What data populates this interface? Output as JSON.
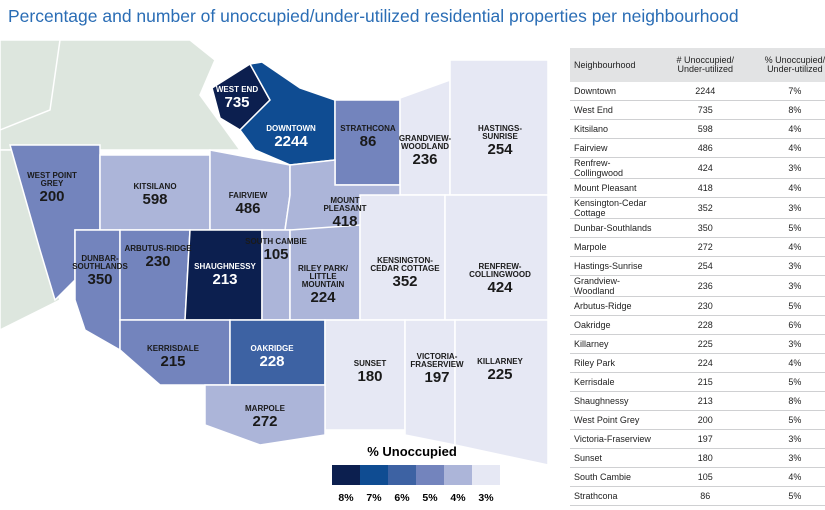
{
  "title": "Percentage and number of unoccupied/under-utilized residential properties per neighbourhood",
  "colors": {
    "8%": "#0c1f4f",
    "7%": "#0f4c92",
    "6%": "#3d62a3",
    "5%": "#7384bd",
    "4%": "#acb5d9",
    "3%": "#e6e8f4",
    "land": "#dde6de"
  },
  "map_labels": [
    {
      "name": "WEST END",
      "value": "735",
      "pct": "8%"
    },
    {
      "name": "DOWNTOWN",
      "value": "2244",
      "pct": "7%"
    },
    {
      "name": "STRATHCONA",
      "value": "86",
      "pct": "5%"
    },
    {
      "name": "GRANDVIEW-WOODLAND",
      "value": "236",
      "pct": "3%"
    },
    {
      "name": "HASTINGS-SUNRISE",
      "value": "254",
      "pct": "3%"
    },
    {
      "name": "WEST POINT GREY",
      "value": "200",
      "pct": "5%"
    },
    {
      "name": "KITSILANO",
      "value": "598",
      "pct": "4%"
    },
    {
      "name": "FAIRVIEW",
      "value": "486",
      "pct": "4%"
    },
    {
      "name": "MOUNT PLEASANT",
      "value": "418",
      "pct": "4%"
    },
    {
      "name": "DUNBAR-SOUTHLANDS",
      "value": "350",
      "pct": "5%"
    },
    {
      "name": "ARBUTUS-RIDGE",
      "value": "230",
      "pct": "5%"
    },
    {
      "name": "SHAUGHNESSY",
      "value": "213",
      "pct": "8%"
    },
    {
      "name": "SOUTH CAMBIE",
      "value": "105",
      "pct": "4%"
    },
    {
      "name": "RILEY PARK/ LITTLE MOUNTAIN",
      "value": "224",
      "pct": "4%"
    },
    {
      "name": "KENSINGTON-CEDAR COTTAGE",
      "value": "352",
      "pct": "3%"
    },
    {
      "name": "RENFREW-COLLINGWOOD",
      "value": "424",
      "pct": "3%"
    },
    {
      "name": "KERRISDALE",
      "value": "215",
      "pct": "5%"
    },
    {
      "name": "OAKRIDGE",
      "value": "228",
      "pct": "6%"
    },
    {
      "name": "SUNSET",
      "value": "180",
      "pct": "3%"
    },
    {
      "name": "VICTORIA-FRASERVIEW",
      "value": "197",
      "pct": "3%"
    },
    {
      "name": "KILLARNEY",
      "value": "225",
      "pct": "3%"
    },
    {
      "name": "MARPOLE",
      "value": "272",
      "pct": "4%"
    }
  ],
  "legend": {
    "title": "% Unoccupied",
    "items": [
      "8%",
      "7%",
      "6%",
      "5%",
      "4%",
      "3%"
    ]
  },
  "table": {
    "headers": [
      "Neighbourhood",
      "# Unoccupied/ Under-utilized",
      "% Unoccupied/ Under-utilized"
    ],
    "rows": [
      [
        "Downtown",
        "2244",
        "7%"
      ],
      [
        "West End",
        "735",
        "8%"
      ],
      [
        "Kitsilano",
        "598",
        "4%"
      ],
      [
        "Fairview",
        "486",
        "4%"
      ],
      [
        "Renfrew-Collingwood",
        "424",
        "3%"
      ],
      [
        "Mount Pleasant",
        "418",
        "4%"
      ],
      [
        "Kensington-Cedar Cottage",
        "352",
        "3%"
      ],
      [
        "Dunbar-Southlands",
        "350",
        "5%"
      ],
      [
        "Marpole",
        "272",
        "4%"
      ],
      [
        "Hastings-Sunrise",
        "254",
        "3%"
      ],
      [
        "Grandview-Woodland",
        "236",
        "3%"
      ],
      [
        "Arbutus-Ridge",
        "230",
        "5%"
      ],
      [
        "Oakridge",
        "228",
        "6%"
      ],
      [
        "Killarney",
        "225",
        "3%"
      ],
      [
        "Riley Park",
        "224",
        "4%"
      ],
      [
        "Kerrisdale",
        "215",
        "5%"
      ],
      [
        "Shaughnessy",
        "213",
        "8%"
      ],
      [
        "West Point Grey",
        "200",
        "5%"
      ],
      [
        "Victoria-Fraserview",
        "197",
        "3%"
      ],
      [
        "Sunset",
        "180",
        "3%"
      ],
      [
        "South Cambie",
        "105",
        "4%"
      ],
      [
        "Strathcona",
        "86",
        "5%"
      ]
    ]
  }
}
